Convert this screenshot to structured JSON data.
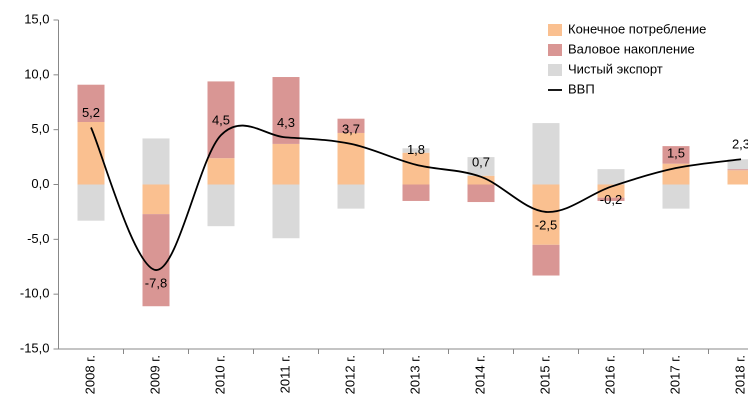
{
  "chart_data": {
    "type": "bar",
    "categories": [
      "2008 г.",
      "2009 г.",
      "2010 г.",
      "2011 г.",
      "2012 г.",
      "2013 г.",
      "2014 г.",
      "2015 г.",
      "2016 г.",
      "2017 г.",
      "2018 г."
    ],
    "series": [
      {
        "name": "Конечное потребление",
        "color": "#fac090",
        "values": [
          5.7,
          -2.7,
          2.4,
          3.7,
          4.7,
          2.9,
          0.8,
          -5.5,
          -1.2,
          1.9,
          1.3
        ]
      },
      {
        "name": "Валовое накопление",
        "color": "#d99694",
        "values": [
          3.4,
          -8.4,
          7.0,
          6.1,
          1.3,
          -1.5,
          -1.6,
          -2.8,
          -0.3,
          1.6,
          0.1
        ]
      },
      {
        "name": "Чистый экспорт",
        "color": "#d9d9d9",
        "values": [
          -3.3,
          4.2,
          -3.8,
          -4.9,
          -2.2,
          0.4,
          1.7,
          5.6,
          1.4,
          -2.2,
          0.9
        ]
      },
      {
        "name": "ВВП",
        "type": "line",
        "color": "#000000",
        "values": [
          5.2,
          -7.8,
          4.5,
          4.3,
          3.7,
          1.8,
          0.7,
          -2.5,
          -0.2,
          1.5,
          2.3
        ],
        "value_labels": [
          "5,2",
          "-7,8",
          "4,5",
          "4,3",
          "3,7",
          "1,8",
          "0,7",
          "-2,5",
          "-0,2",
          "1,5",
          "2,3"
        ]
      }
    ],
    "ylim": [
      -15,
      15
    ],
    "yticks": [
      {
        "value": -15,
        "label": "-15,0"
      },
      {
        "value": -10,
        "label": "-10,0"
      },
      {
        "value": -5,
        "label": "-5,0"
      },
      {
        "value": 0,
        "label": "0,0"
      },
      {
        "value": 5,
        "label": "5,0"
      },
      {
        "value": 10,
        "label": "10,0"
      },
      {
        "value": 15,
        "label": "15,0"
      }
    ],
    "stacked": true,
    "grid": false,
    "legend": "top-right"
  }
}
